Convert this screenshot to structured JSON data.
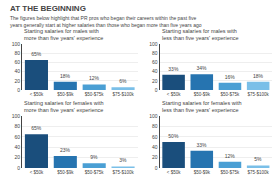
{
  "title": "AT THE BEGINNING",
  "subtitle": "The figures below highlight that PR pros who began their careers within the past five\nyears generally start at higher salaries than those who began more than five years ago",
  "chart_data": [
    {
      "type": "bar",
      "title": "Starting salaries for males with\nmore than five years' experience",
      "categories": [
        "< $50k",
        "$50-$9k",
        "$50-$75k",
        "$75-$100k"
      ],
      "values": [
        65,
        18,
        12,
        6
      ],
      "value_labels": [
        "65%",
        "18%",
        "12%",
        "6%"
      ],
      "colors": [
        "#1a4e7c",
        "#2674b0",
        "#4a9fd4",
        "#7abfe8"
      ],
      "ylim": [
        0,
        100
      ],
      "yticks": [
        0,
        20,
        40,
        60,
        80,
        100
      ],
      "grid": true,
      "data_labels": true
    },
    {
      "type": "bar",
      "title": "Starting salaries for males with\nless than five years' experience",
      "categories": [
        "< $50k",
        "$50-$9k",
        "$50-$75k",
        "$75-$100k"
      ],
      "values": [
        33,
        34,
        16,
        18
      ],
      "value_labels": [
        "33%",
        "34%",
        "16%",
        "18%"
      ],
      "colors": [
        "#1a4e7c",
        "#2674b0",
        "#4a9fd4",
        "#7abfe8"
      ],
      "ylim": [
        0,
        100
      ],
      "yticks": [
        0,
        20,
        40,
        60,
        80,
        100
      ],
      "grid": true,
      "data_labels": true
    },
    {
      "type": "bar",
      "title": "Starting salaries for females with\nmore than five years' experience",
      "categories": [
        "< $50k",
        "$50-$9k",
        "$50-$75k",
        "$75-$100k"
      ],
      "values": [
        65,
        23,
        9,
        3
      ],
      "value_labels": [
        "65%",
        "23%",
        "9%",
        "3%"
      ],
      "colors": [
        "#1a4e7c",
        "#2674b0",
        "#4a9fd4",
        "#7abfe8"
      ],
      "ylim": [
        0,
        100
      ],
      "yticks": [
        0,
        20,
        40,
        60,
        80,
        100
      ],
      "grid": true,
      "data_labels": true
    },
    {
      "type": "bar",
      "title": "Starting salaries for females with\nless than five years' experience",
      "categories": [
        "< $50k",
        "$50-$9k",
        "$50-$75k",
        "$75-$100k"
      ],
      "values": [
        50,
        33,
        12,
        5
      ],
      "value_labels": [
        "50%",
        "33%",
        "12%",
        "5%"
      ],
      "colors": [
        "#1a4e7c",
        "#2674b0",
        "#4a9fd4",
        "#7abfe8"
      ],
      "ylim": [
        0,
        100
      ],
      "yticks": [
        0,
        20,
        40,
        60,
        80,
        100
      ],
      "grid": true,
      "data_labels": true
    }
  ]
}
